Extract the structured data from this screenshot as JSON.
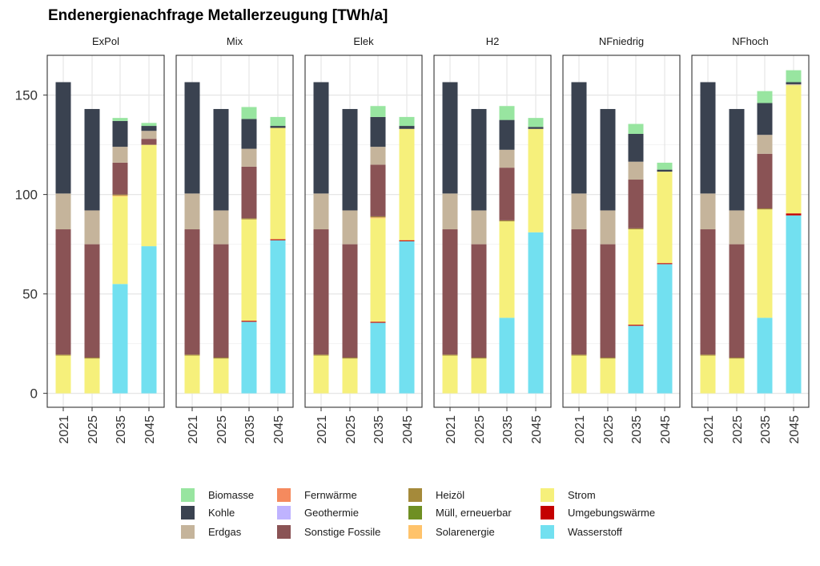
{
  "chart_data": {
    "type": "bar",
    "stacked": true,
    "title": "Endenergienachfrage Metallerzeugung [TWh/a]",
    "xlabel": "",
    "ylabel": "",
    "ylim": [
      0,
      170
    ],
    "yticks": [
      0,
      50,
      100,
      150
    ],
    "grid": true,
    "legend_position": "bottom",
    "categories": [
      "2021",
      "2025",
      "2035",
      "2045"
    ],
    "carriers": [
      {
        "name": "Biomasse",
        "color": "#98e5a0"
      },
      {
        "name": "Kohle",
        "color": "#3a4250"
      },
      {
        "name": "Erdgas",
        "color": "#c5b49b"
      },
      {
        "name": "Fernwärme",
        "color": "#f58a5e"
      },
      {
        "name": "Geothermie",
        "color": "#bfb3ff"
      },
      {
        "name": "Sonstige Fossile",
        "color": "#8a5355"
      },
      {
        "name": "Heizöl",
        "color": "#a58a3a"
      },
      {
        "name": "Müll, erneuerbar",
        "color": "#6f8f23"
      },
      {
        "name": "Solarenergie",
        "color": "#ffc36b"
      },
      {
        "name": "Strom",
        "color": "#f6f07b"
      },
      {
        "name": "Umgebungswärme",
        "color": "#c40000"
      },
      {
        "name": "Wasserstoff",
        "color": "#72e0f0"
      }
    ],
    "stack_order": [
      "Wasserstoff",
      "Umgebungswärme",
      "Strom",
      "Solarenergie",
      "Müll, erneuerbar",
      "Heizöl",
      "Sonstige Fossile",
      "Geothermie",
      "Fernwärme",
      "Erdgas",
      "Kohle",
      "Biomasse"
    ],
    "panels": [
      {
        "name": "ExPol",
        "series": {
          "Wasserstoff": [
            0,
            0,
            55,
            74
          ],
          "Umgebungswärme": [
            0,
            0,
            0,
            0
          ],
          "Strom": [
            19,
            17.5,
            44,
            51
          ],
          "Solarenergie": [
            0,
            0,
            0.5,
            0
          ],
          "Sonstige Fossile": [
            63,
            57,
            16,
            3
          ],
          "Erdgas": [
            18,
            17,
            8,
            4
          ],
          "Kohle": [
            56,
            51,
            13,
            2.5
          ],
          "Heizöl": [
            0.5,
            0.5,
            0.5,
            0
          ],
          "Biomasse": [
            0,
            0,
            1.5,
            1.5
          ],
          "Fernwärme": [
            0,
            0,
            0,
            0
          ],
          "Geothermie": [
            0,
            0,
            0,
            0
          ],
          "Müll, erneuerbar": [
            0,
            0,
            0,
            0
          ]
        }
      },
      {
        "name": "Mix",
        "series": {
          "Wasserstoff": [
            0,
            0,
            36,
            77
          ],
          "Umgebungswärme": [
            0,
            0,
            0.5,
            0.5
          ],
          "Strom": [
            19,
            17.5,
            51,
            56
          ],
          "Solarenergie": [
            0,
            0,
            0,
            0
          ],
          "Sonstige Fossile": [
            63,
            57,
            26,
            0
          ],
          "Erdgas": [
            18,
            17,
            9,
            0
          ],
          "Kohle": [
            56,
            51,
            15,
            1
          ],
          "Heizöl": [
            0.5,
            0.5,
            0.5,
            0
          ],
          "Biomasse": [
            0,
            0,
            6,
            4.5
          ],
          "Fernwärme": [
            0,
            0,
            0,
            0
          ],
          "Geothermie": [
            0,
            0,
            0,
            0
          ],
          "Müll, erneuerbar": [
            0,
            0,
            0,
            0
          ]
        }
      },
      {
        "name": "Elek",
        "series": {
          "Wasserstoff": [
            0,
            0,
            35.5,
            76.5
          ],
          "Umgebungswärme": [
            0,
            0,
            0.5,
            0.5
          ],
          "Strom": [
            19,
            17.5,
            52,
            56
          ],
          "Solarenergie": [
            0,
            0,
            0.5,
            0
          ],
          "Sonstige Fossile": [
            63,
            57,
            26,
            0
          ],
          "Erdgas": [
            18,
            17,
            9,
            0
          ],
          "Kohle": [
            56,
            51,
            15,
            1.5
          ],
          "Heizöl": [
            0.5,
            0.5,
            0.5,
            0
          ],
          "Biomasse": [
            0,
            0,
            5.5,
            4.5
          ],
          "Fernwärme": [
            0,
            0,
            0,
            0
          ],
          "Geothermie": [
            0,
            0,
            0,
            0
          ],
          "Müll, erneuerbar": [
            0,
            0,
            0,
            0
          ]
        }
      },
      {
        "name": "H2",
        "series": {
          "Wasserstoff": [
            0,
            0,
            38,
            81
          ],
          "Umgebungswärme": [
            0,
            0,
            0,
            0
          ],
          "Strom": [
            19,
            17.5,
            48.5,
            52
          ],
          "Solarenergie": [
            0,
            0,
            0,
            0
          ],
          "Sonstige Fossile": [
            63,
            57,
            26.5,
            0
          ],
          "Erdgas": [
            18,
            17,
            9,
            0
          ],
          "Kohle": [
            56,
            51,
            15,
            1
          ],
          "Heizöl": [
            0.5,
            0.5,
            0.5,
            0
          ],
          "Biomasse": [
            0,
            0,
            7,
            4.5
          ],
          "Fernwärme": [
            0,
            0,
            0,
            0
          ],
          "Geothermie": [
            0,
            0,
            0,
            0
          ],
          "Müll, erneuerbar": [
            0,
            0,
            0,
            0
          ]
        }
      },
      {
        "name": "NFniedrig",
        "series": {
          "Wasserstoff": [
            0,
            0,
            34,
            65
          ],
          "Umgebungswärme": [
            0,
            0,
            0.5,
            0.5
          ],
          "Strom": [
            19,
            17.5,
            48,
            46
          ],
          "Solarenergie": [
            0,
            0,
            0,
            0
          ],
          "Sonstige Fossile": [
            63,
            57,
            24.5,
            0
          ],
          "Erdgas": [
            18,
            17,
            9,
            0
          ],
          "Kohle": [
            56,
            51,
            14,
            1
          ],
          "Heizöl": [
            0.5,
            0.5,
            0.5,
            0
          ],
          "Biomasse": [
            0,
            0,
            5,
            3.5
          ],
          "Fernwärme": [
            0,
            0,
            0,
            0
          ],
          "Geothermie": [
            0,
            0,
            0,
            0
          ],
          "Müll, erneuerbar": [
            0,
            0,
            0,
            0
          ]
        }
      },
      {
        "name": "NFhoch",
        "series": {
          "Wasserstoff": [
            0,
            0,
            38,
            89.5
          ],
          "Umgebungswärme": [
            0,
            0,
            0,
            1
          ],
          "Strom": [
            19,
            17.5,
            54.5,
            64.5
          ],
          "Solarenergie": [
            0,
            0,
            0,
            0
          ],
          "Sonstige Fossile": [
            63,
            57,
            27.5,
            0
          ],
          "Erdgas": [
            18,
            17,
            9.5,
            0.5
          ],
          "Kohle": [
            56,
            51,
            16,
            1
          ],
          "Heizöl": [
            0.5,
            0.5,
            0.5,
            0
          ],
          "Biomasse": [
            0,
            0,
            6,
            6
          ],
          "Fernwärme": [
            0,
            0,
            0,
            0
          ],
          "Geothermie": [
            0,
            0,
            0,
            0
          ],
          "Müll, erneuerbar": [
            0,
            0,
            0,
            0
          ]
        }
      }
    ]
  }
}
